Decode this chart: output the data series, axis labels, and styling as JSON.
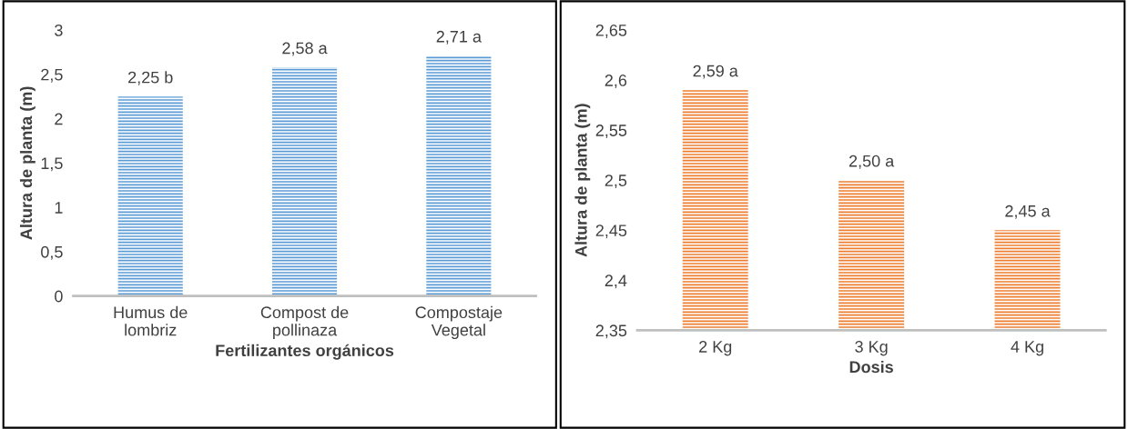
{
  "chart_data": [
    {
      "type": "bar",
      "xlabel": "Fertilizantes orgánicos",
      "ylabel": "Altura de planta (m)",
      "categories": [
        "Humus de\nlombriz",
        "Compost de\npollinaza",
        "Compostaje\nVegetal"
      ],
      "values": [
        2.25,
        2.58,
        2.71
      ],
      "value_labels": [
        "2,25 b",
        "2,58 a",
        "2,71 a"
      ],
      "color": "#5b9bd5",
      "ylim": [
        0,
        3
      ],
      "yticks": [
        0,
        {
          "value": 0.5,
          "label": "0,5"
        },
        1,
        {
          "value": 1.5,
          "label": "1,5"
        },
        2,
        {
          "value": 2.5,
          "label": "2,5"
        },
        3
      ],
      "grid": false
    },
    {
      "type": "bar",
      "xlabel": "Dosis",
      "ylabel": "Altura de planta (m)",
      "categories": [
        "2 Kg",
        "3 Kg",
        "4 Kg"
      ],
      "values": [
        2.59,
        2.5,
        2.45
      ],
      "value_labels": [
        "2,59 a",
        "2,50 a",
        "2,45 a"
      ],
      "color": "#ed7d31",
      "ylim": [
        2.35,
        2.65
      ],
      "yticks": [
        {
          "value": 2.35,
          "label": "2,35"
        },
        {
          "value": 2.4,
          "label": "2,4"
        },
        {
          "value": 2.45,
          "label": "2,45"
        },
        {
          "value": 2.5,
          "label": "2,5"
        },
        {
          "value": 2.55,
          "label": "2,55"
        },
        {
          "value": 2.6,
          "label": "2,6"
        },
        {
          "value": 2.65,
          "label": "2,65"
        }
      ],
      "grid": false
    }
  ]
}
